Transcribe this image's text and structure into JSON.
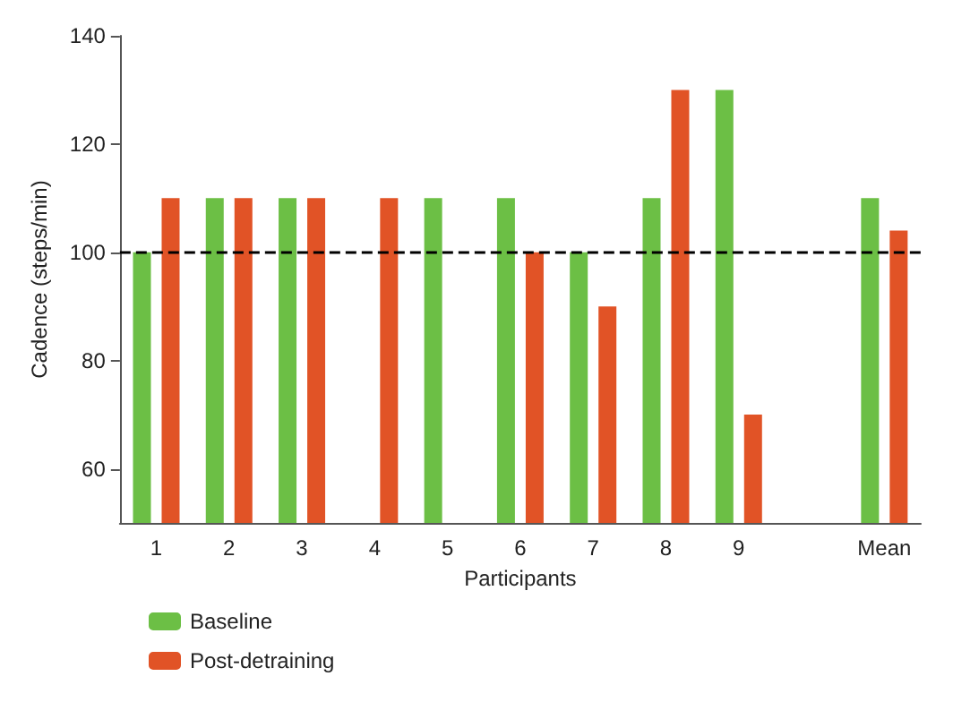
{
  "chart_data": {
    "type": "bar",
    "xlabel": "Participants",
    "ylabel": "Cadence (steps/min)",
    "categories": [
      "1",
      "2",
      "3",
      "4",
      "5",
      "6",
      "7",
      "8",
      "9",
      null,
      "Mean"
    ],
    "series": [
      {
        "name": "Baseline",
        "color": "#6cbf45",
        "values": [
          100,
          110,
          110,
          null,
          110,
          110,
          100,
          110,
          130,
          null,
          110
        ]
      },
      {
        "name": "Post-detraining",
        "color": "#e15326",
        "values": [
          110,
          110,
          110,
          110,
          null,
          100,
          90,
          130,
          70,
          null,
          104
        ]
      }
    ],
    "ylim": [
      50,
      140
    ],
    "yticks": [
      60,
      80,
      100,
      120,
      140
    ],
    "ref_lines": [
      {
        "axis": "y",
        "value": 100,
        "color": "#000000",
        "line_style": "dashed"
      }
    ],
    "grid": false,
    "legend": "bottom left"
  }
}
